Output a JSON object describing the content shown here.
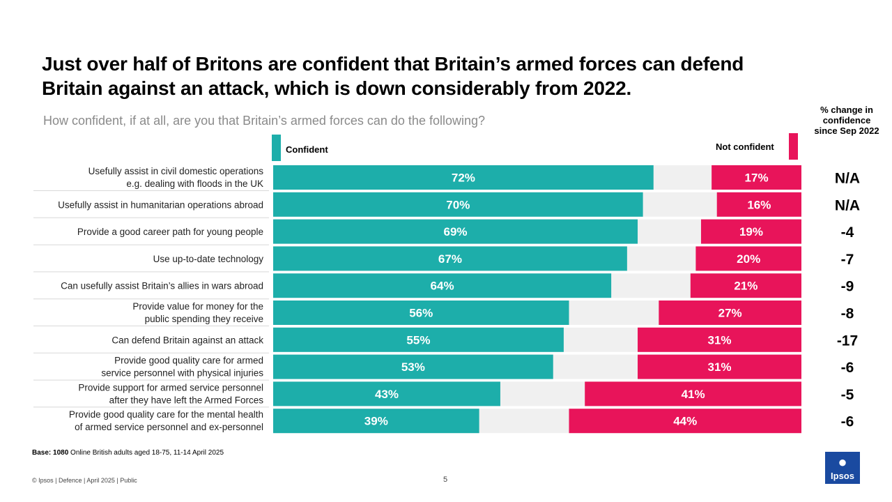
{
  "title": "Just over half of Britons are confident that Britain’s armed forces can defend Britain against an attack, which is down considerably from 2022.",
  "subtitle": "How confident, if at all, are you that Britain’s armed forces can do the following?",
  "change_header": "% change in confidence since Sep 2022",
  "legend": {
    "confident": "Confident",
    "not_confident": "Not confident"
  },
  "colors": {
    "confident": "#1daeaa",
    "not_confident": "#e8145a",
    "neutral": "#f0f0f0"
  },
  "base": {
    "label": "Base: 1080",
    "text": "Online British adults aged 18-75, 11-14 April 2025"
  },
  "footer": "© Ipsos | Defence | April 2025 | Public",
  "page_number": "5",
  "logo": {
    "text": "Ipsos",
    "icon": "ipsos-logo-icon"
  },
  "chart_data": {
    "type": "bar",
    "stacked": true,
    "orientation": "horizontal",
    "categories": [
      [
        "Usefully assist in civil domestic operations",
        "e.g. dealing with floods in the UK"
      ],
      [
        "Usefully assist in humanitarian operations abroad"
      ],
      [
        "Provide a good career path for young people"
      ],
      [
        "Use up-to-date technology"
      ],
      [
        "Can usefully assist Britain’s allies in wars abroad"
      ],
      [
        "Provide value for money for the",
        "public spending they receive"
      ],
      [
        "Can defend Britain against an attack"
      ],
      [
        "Provide good quality care for armed",
        "service personnel with physical injuries"
      ],
      [
        "Provide support for armed service personnel",
        "after they have left the Armed Forces"
      ],
      [
        "Provide good quality care for the mental health",
        "of armed service personnel and ex-personnel"
      ]
    ],
    "series": [
      {
        "name": "Confident",
        "values": [
          72,
          70,
          69,
          67,
          64,
          56,
          55,
          53,
          43,
          39
        ]
      },
      {
        "name": "Not confident",
        "values": [
          17,
          16,
          19,
          20,
          21,
          27,
          31,
          31,
          41,
          44
        ]
      }
    ],
    "change_since_sep_2022": [
      "N/A",
      "N/A",
      "-4",
      "-7",
      "-9",
      "-8",
      "-17",
      "-6",
      "-5",
      "-6"
    ],
    "xlim": [
      0,
      100
    ]
  }
}
